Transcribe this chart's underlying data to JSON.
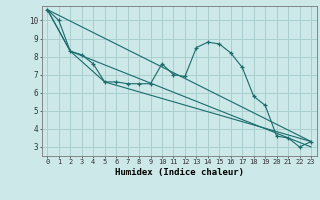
{
  "xlabel": "Humidex (Indice chaleur)",
  "bg_color": "#cce8e8",
  "line_color": "#1a6b6b",
  "grid_color": "#aacfcf",
  "xlim": [
    -0.5,
    23.5
  ],
  "ylim": [
    2.5,
    10.8
  ],
  "yticks": [
    3,
    4,
    5,
    6,
    7,
    8,
    9,
    10
  ],
  "xticks": [
    0,
    1,
    2,
    3,
    4,
    5,
    6,
    7,
    8,
    9,
    10,
    11,
    12,
    13,
    14,
    15,
    16,
    17,
    18,
    19,
    20,
    21,
    22,
    23
  ],
  "line1_x": [
    0,
    1,
    2,
    3,
    4,
    5,
    6,
    7,
    8,
    9,
    10,
    11,
    12,
    13,
    14,
    15,
    16,
    17,
    18,
    19,
    20,
    21,
    22,
    23
  ],
  "line1_y": [
    10.6,
    10.0,
    8.3,
    8.1,
    7.6,
    6.6,
    6.6,
    6.5,
    6.5,
    6.5,
    7.6,
    7.0,
    6.9,
    8.5,
    8.8,
    8.7,
    8.2,
    7.4,
    5.8,
    5.3,
    3.6,
    3.5,
    3.0,
    3.3
  ],
  "line2_x": [
    0,
    23
  ],
  "line2_y": [
    10.6,
    3.3
  ],
  "line3_x": [
    0,
    2,
    23
  ],
  "line3_y": [
    10.6,
    8.3,
    3.0
  ],
  "line4_x": [
    0,
    2,
    5,
    23
  ],
  "line4_y": [
    10.6,
    8.3,
    6.6,
    3.3
  ]
}
